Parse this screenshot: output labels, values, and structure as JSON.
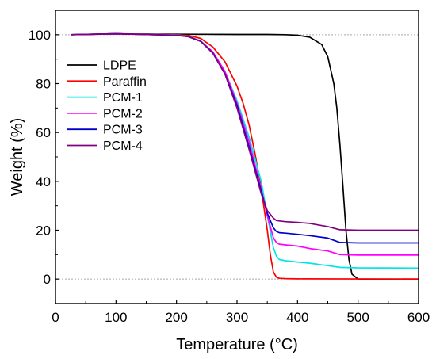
{
  "chart_data": {
    "type": "line",
    "xlabel": "Temperature (°C)",
    "ylabel": "Weight (%)",
    "xlim": [
      0,
      600
    ],
    "ylim": [
      -10,
      110
    ],
    "x_ticks": [
      0,
      100,
      200,
      300,
      400,
      500,
      600
    ],
    "y_ticks": [
      0,
      20,
      40,
      60,
      80,
      100
    ],
    "reference_lines": [
      0,
      100
    ],
    "legend_position": "top-left",
    "series": [
      {
        "name": "LDPE",
        "color": "#000000",
        "x": [
          25,
          100,
          200,
          300,
          350,
          380,
          400,
          420,
          440,
          450,
          460,
          465,
          470,
          475,
          480,
          485,
          490,
          500,
          550,
          600
        ],
        "y": [
          100,
          100.3,
          100.2,
          100.1,
          100.1,
          100,
          99.8,
          99,
          96,
          91,
          80,
          70,
          55,
          38,
          20,
          8,
          2,
          0,
          0,
          0
        ]
      },
      {
        "name": "Paraffin",
        "color": "#ff0000",
        "x": [
          25,
          100,
          200,
          220,
          240,
          260,
          280,
          300,
          310,
          320,
          330,
          340,
          350,
          355,
          360,
          365,
          370,
          380,
          400,
          600
        ],
        "y": [
          100,
          100.4,
          100,
          99.7,
          98.5,
          95,
          89,
          79,
          72,
          63,
          51,
          37,
          20,
          10,
          3,
          0.8,
          0.3,
          0.2,
          0.1,
          0
        ]
      },
      {
        "name": "PCM-1",
        "color": "#00e5e5",
        "x": [
          25,
          100,
          200,
          220,
          240,
          260,
          280,
          300,
          320,
          340,
          350,
          360,
          365,
          370,
          380,
          400,
          420,
          450,
          470,
          500,
          600
        ],
        "y": [
          100,
          100.4,
          99.9,
          99.3,
          97.5,
          93,
          85,
          73,
          58,
          40,
          26,
          13,
          9.5,
          8,
          7.5,
          7,
          6.5,
          5.5,
          4.8,
          4.6,
          4.5
        ]
      },
      {
        "name": "PCM-2",
        "color": "#ff00ff",
        "x": [
          25,
          100,
          200,
          220,
          240,
          260,
          280,
          300,
          320,
          340,
          350,
          360,
          365,
          370,
          380,
          400,
          420,
          450,
          470,
          500,
          600
        ],
        "y": [
          100,
          100.4,
          99.8,
          99.2,
          97.3,
          93,
          85,
          72,
          56,
          37,
          26,
          17,
          15,
          14.3,
          14,
          13.5,
          12.5,
          11.5,
          10,
          9.8,
          9.8
        ]
      },
      {
        "name": "PCM-3",
        "color": "#0000cd",
        "x": [
          25,
          100,
          200,
          220,
          240,
          260,
          280,
          300,
          320,
          340,
          350,
          360,
          365,
          370,
          380,
          400,
          420,
          450,
          470,
          500,
          600
        ],
        "y": [
          100,
          100.4,
          99.8,
          99.2,
          97.3,
          92.5,
          84,
          71,
          54,
          36,
          27,
          21,
          19.5,
          19,
          18.8,
          18.3,
          17.8,
          16.8,
          15,
          14.8,
          14.8
        ]
      },
      {
        "name": "PCM-4",
        "color": "#800080",
        "x": [
          25,
          100,
          200,
          220,
          240,
          260,
          280,
          300,
          320,
          340,
          350,
          360,
          365,
          370,
          380,
          400,
          420,
          450,
          470,
          500,
          600
        ],
        "y": [
          100,
          100.4,
          99.8,
          99.2,
          97.3,
          92.5,
          84,
          70,
          53,
          35,
          28,
          25,
          24,
          23.8,
          23.5,
          23.2,
          22.8,
          21.5,
          20.2,
          20,
          20
        ]
      }
    ]
  }
}
